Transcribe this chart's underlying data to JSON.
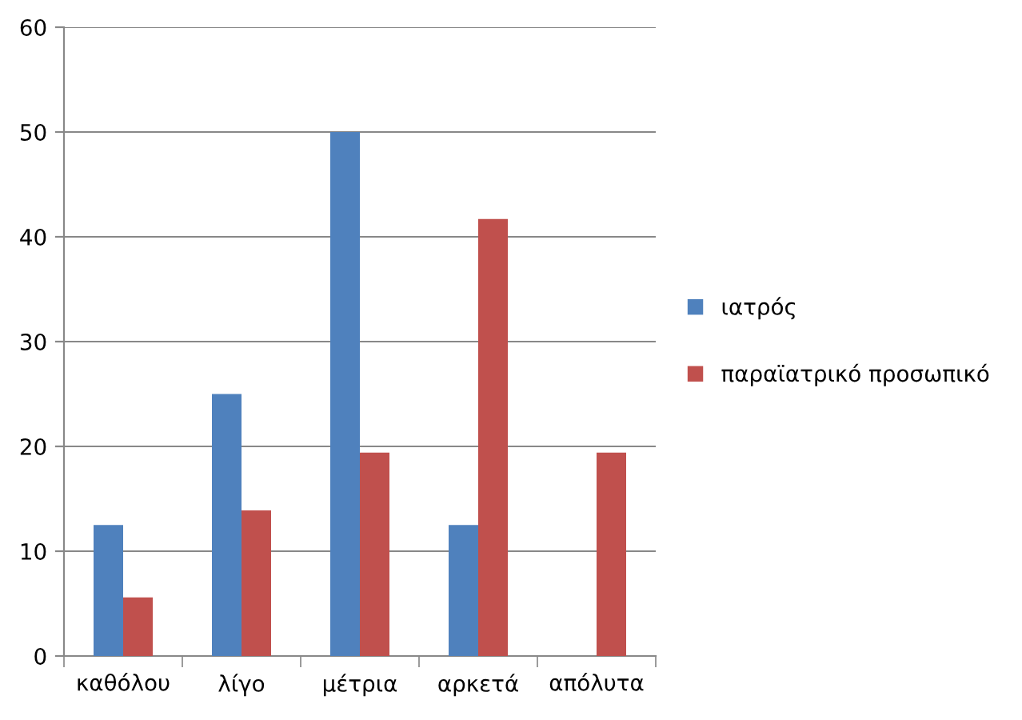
{
  "chart_data": {
    "type": "bar",
    "categories": [
      "καθόλου",
      "λίγο",
      "μέτρια",
      "αρκετά",
      "απόλυτα"
    ],
    "series": [
      {
        "name": "ιατρός",
        "color": "#4f81bd",
        "values": [
          12.5,
          25,
          50,
          12.5,
          null
        ]
      },
      {
        "name": "παραϊατρικό προσωπικό",
        "color": "#c0504d",
        "values": [
          5.6,
          13.9,
          19.4,
          41.7,
          19.4
        ]
      }
    ],
    "ylim": [
      0,
      60
    ],
    "yticks": [
      0,
      10,
      20,
      30,
      40,
      50,
      60
    ],
    "grid": "y",
    "legend": "right"
  }
}
